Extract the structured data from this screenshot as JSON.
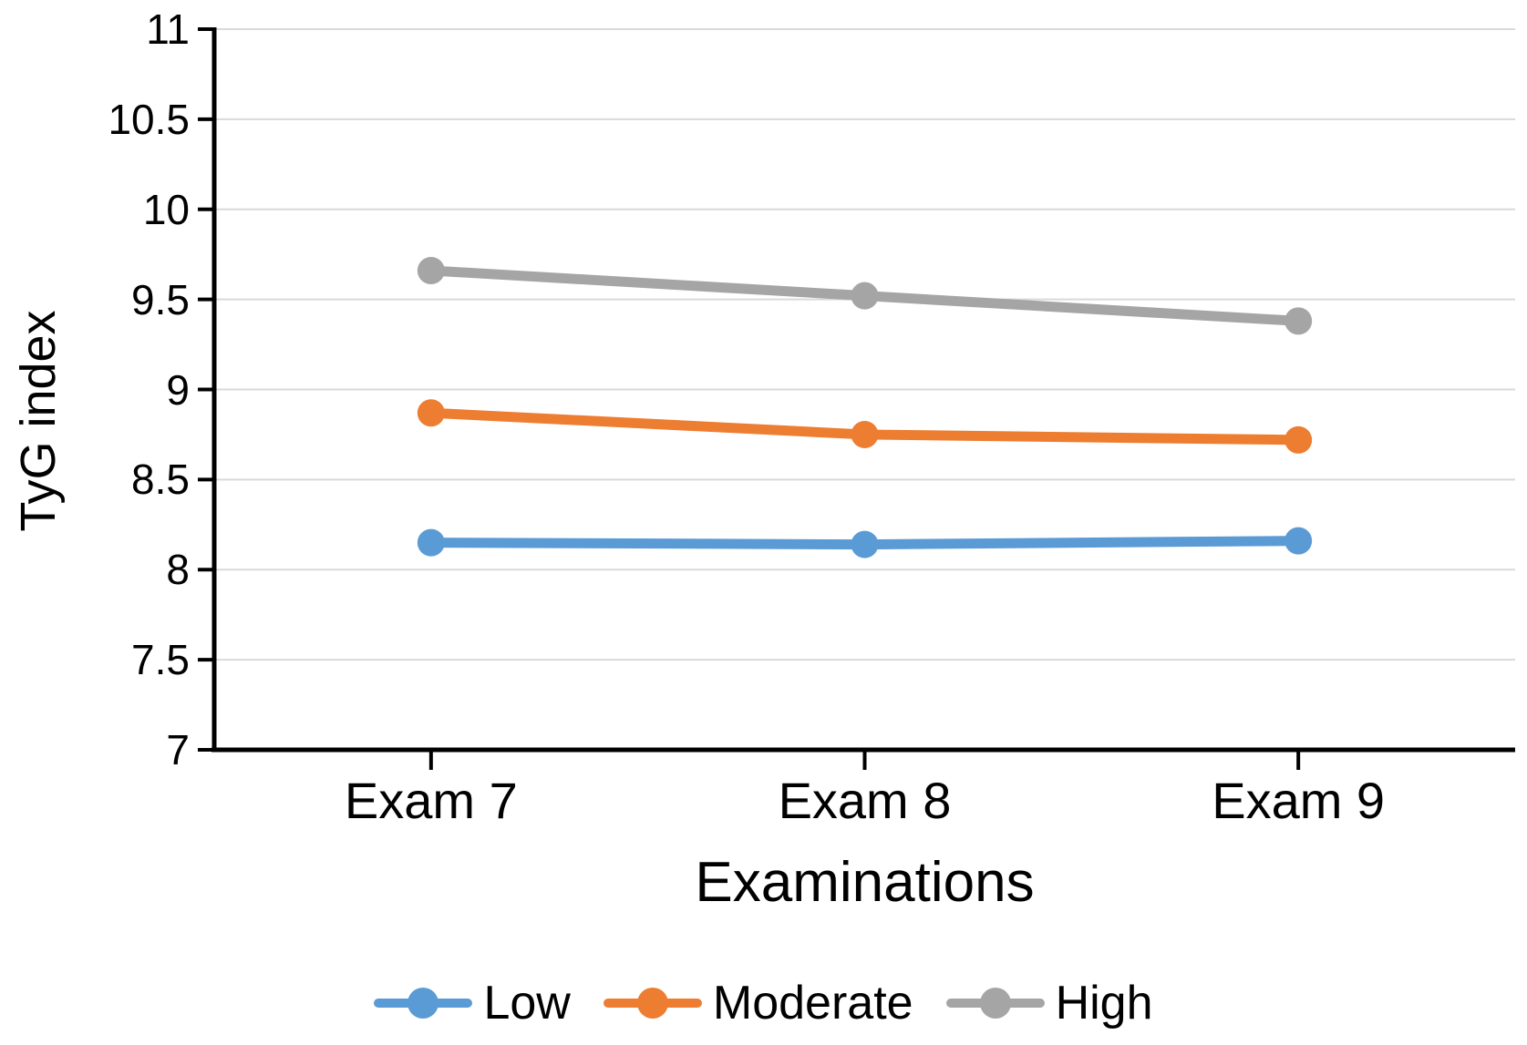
{
  "chart_data": {
    "type": "line",
    "title": "",
    "xlabel": "Examinations",
    "ylabel": "TyG index",
    "categories": [
      "Exam 7",
      "Exam 8",
      "Exam 9"
    ],
    "series": [
      {
        "name": "Low",
        "color": "#5B9BD5",
        "values": [
          8.15,
          8.14,
          8.16
        ]
      },
      {
        "name": "Moderate",
        "color": "#ED7D31",
        "values": [
          8.87,
          8.75,
          8.72
        ]
      },
      {
        "name": "High",
        "color": "#A5A5A5",
        "values": [
          9.66,
          9.52,
          9.38
        ]
      }
    ],
    "ylim": [
      7,
      11
    ],
    "ytick_step": 0.5,
    "ytick_labels": [
      "11",
      "10.5",
      "10",
      "9.5",
      "9",
      "8.5",
      "8",
      "7.5",
      "7"
    ],
    "grid": true,
    "gridline_color": "#D9D9D9",
    "axis_color": "#000000",
    "legend_position": "bottom"
  }
}
